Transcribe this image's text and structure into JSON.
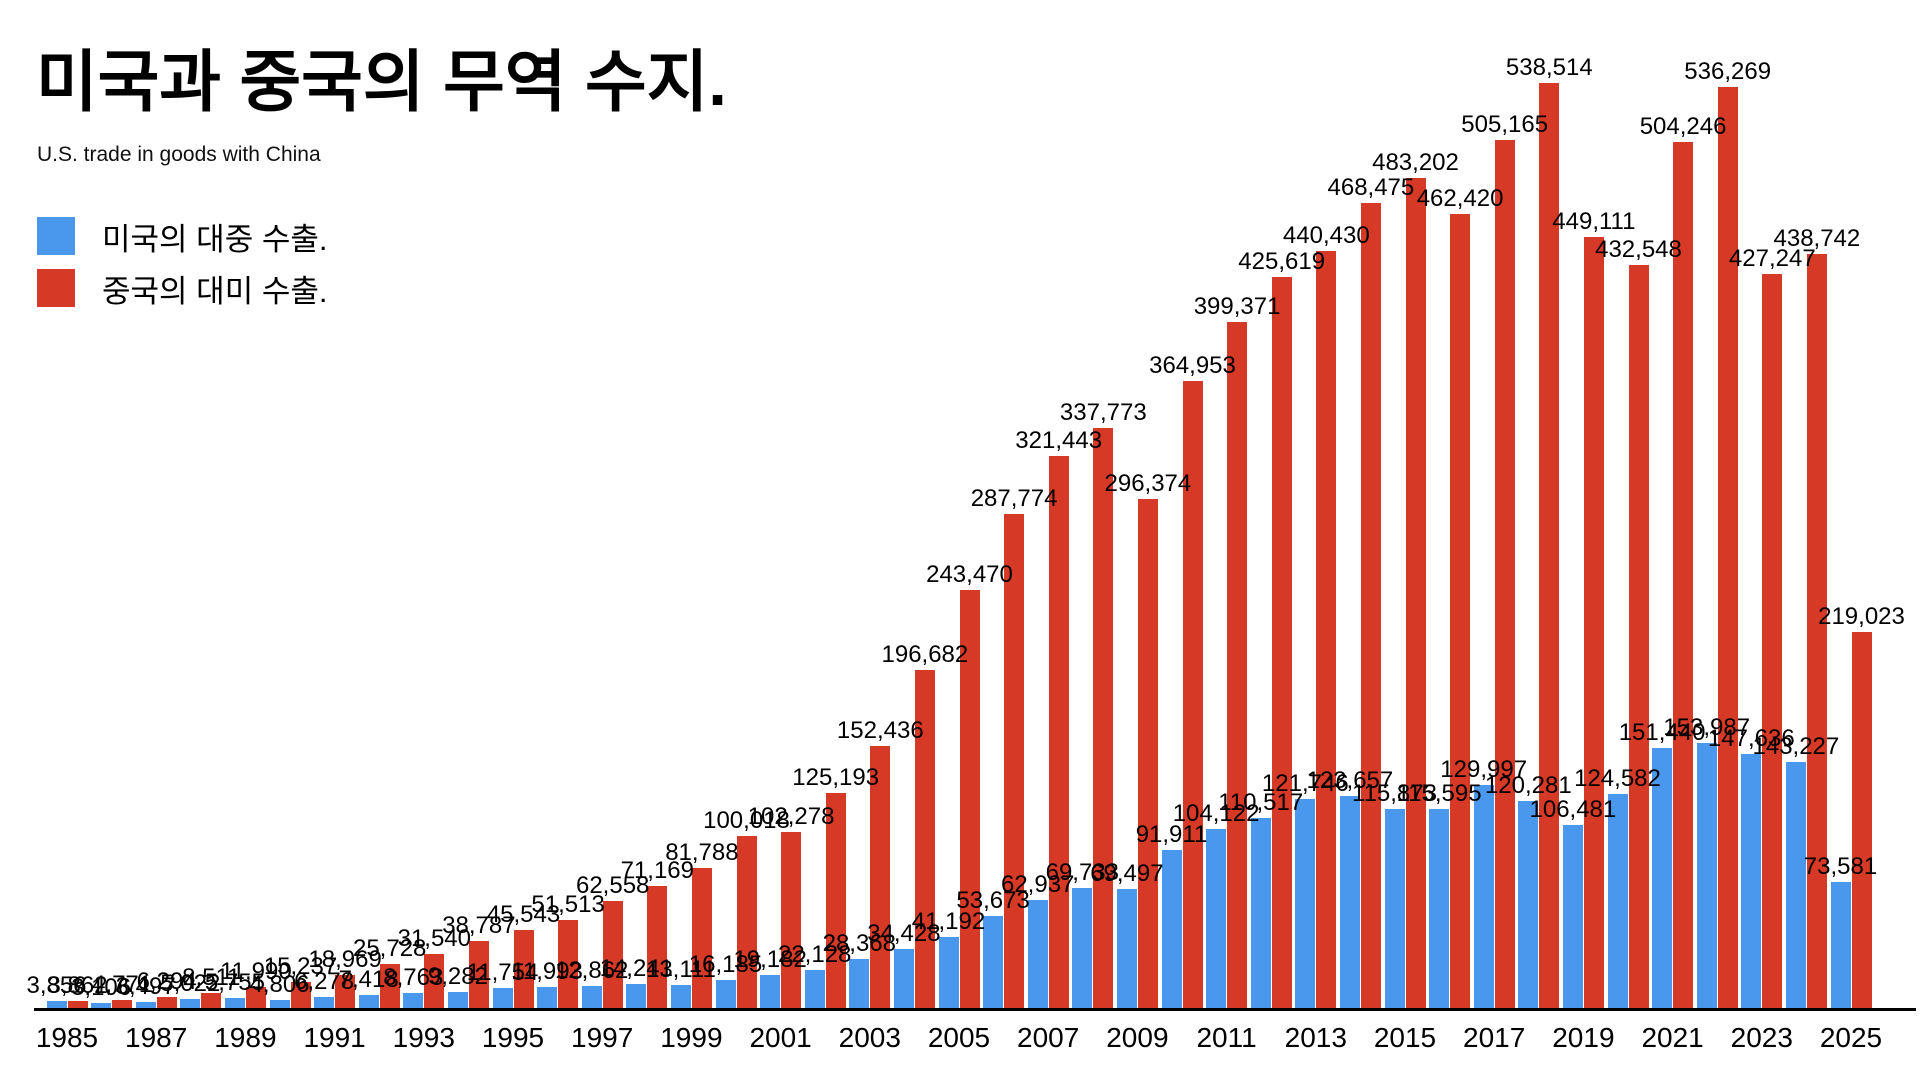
{
  "title": "미국과 중국의 무역 수지.",
  "subtitle": "U.S. trade in goods with China",
  "legend": {
    "items": [
      {
        "label": "미국의 대중 수출.",
        "color": "#4A97EE"
      },
      {
        "label": "중국의 대미 수출.",
        "color": "#D63A26"
      }
    ]
  },
  "chart_data": {
    "type": "bar",
    "title": "미국과 중국의 무역 수지.",
    "subtitle": "U.S. trade in goods with China",
    "xlabel": "",
    "ylabel": "",
    "grid": false,
    "legend_position": "top-left",
    "data_labels": true,
    "ylim": [
      0,
      538514
    ],
    "categories": [
      1985,
      1986,
      1987,
      1988,
      1989,
      1990,
      1991,
      1992,
      1993,
      1994,
      1995,
      1996,
      1997,
      1998,
      1999,
      2000,
      2001,
      2002,
      2003,
      2004,
      2005,
      2006,
      2007,
      2008,
      2009,
      2010,
      2011,
      2012,
      2013,
      2014,
      2015,
      2016,
      2017,
      2018,
      2019,
      2020,
      2021,
      2022,
      2023,
      2024,
      2025
    ],
    "x_tick_labels": [
      "1985",
      "1987",
      "1989",
      "1991",
      "1993",
      "1995",
      "1997",
      "1999",
      "2001",
      "2003",
      "2005",
      "2007",
      "2009",
      "2011",
      "2013",
      "2015",
      "2017",
      "2019",
      "2021",
      "2023",
      "2025"
    ],
    "series": [
      {
        "name": "미국의 대중 수출.",
        "color": "#4A97EE",
        "values": [
          3856,
          3106,
          3497,
          5022,
          5755,
          4806,
          6278,
          7418,
          8763,
          9282,
          11754,
          11993,
          12862,
          14241,
          13111,
          16185,
          19182,
          22128,
          28368,
          34428,
          41192,
          53673,
          62937,
          69733,
          69497,
          91911,
          104122,
          110517,
          121746,
          123657,
          115873,
          115595,
          129997,
          120281,
          106481,
          124582,
          151440,
          153987,
          147636,
          143227,
          73581
        ]
      },
      {
        "name": "중국의 대미 수출.",
        "color": "#D63A26",
        "values": [
          3862,
          4771,
          6294,
          8511,
          11990,
          15237,
          18969,
          25728,
          31540,
          38787,
          45543,
          51513,
          62558,
          71169,
          81788,
          100018,
          102278,
          125193,
          152436,
          196682,
          243470,
          287774,
          321443,
          337773,
          296374,
          364953,
          399371,
          425619,
          440430,
          468475,
          483202,
          462420,
          505165,
          538514,
          449111,
          432548,
          504246,
          536269,
          427247,
          438742,
          219023
        ]
      }
    ]
  }
}
